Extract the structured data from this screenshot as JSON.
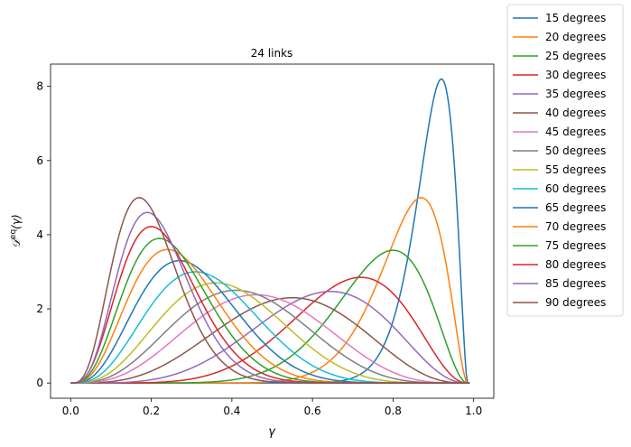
{
  "chart_data": {
    "type": "line",
    "title": "24 links",
    "xlabel": "γ",
    "ylabel_main": "𝒟",
    "ylabel_sup": "eq",
    "ylabel_arg": "(γ)",
    "xlim": [
      -0.05,
      1.05
    ],
    "ylim": [
      -0.41,
      8.6
    ],
    "x_ticks": [
      0.0,
      0.2,
      0.4,
      0.6,
      0.8,
      1.0
    ],
    "x_tick_labels": [
      "0.0",
      "0.2",
      "0.4",
      "0.6",
      "0.8",
      "1.0"
    ],
    "y_ticks": [
      0,
      2,
      4,
      6,
      8
    ],
    "y_tick_labels": [
      "0",
      "2",
      "4",
      "6",
      "8"
    ],
    "grid": false,
    "legend_position": "outside-right",
    "colors": [
      "#1f77b4",
      "#ff7f0e",
      "#2ca02c",
      "#d62728",
      "#9467bd",
      "#8c564b",
      "#e377c2",
      "#7f7f7f",
      "#bcbd22",
      "#17becf"
    ],
    "series": [
      {
        "name": "15 degrees",
        "peak_x": 0.92,
        "peak_y": 8.2,
        "x_end": 0.985
      },
      {
        "name": "20 degrees",
        "peak_x": 0.87,
        "peak_y": 5.0,
        "x_end": 0.985
      },
      {
        "name": "25 degrees",
        "peak_x": 0.8,
        "peak_y": 3.58,
        "x_end": 0.985
      },
      {
        "name": "30 degrees",
        "peak_x": 0.72,
        "peak_y": 2.85,
        "x_end": 0.985
      },
      {
        "name": "35 degrees",
        "peak_x": 0.645,
        "peak_y": 2.47,
        "x_end": 0.985
      },
      {
        "name": "40 degrees",
        "peak_x": 0.55,
        "peak_y": 2.3,
        "x_end": 0.985
      },
      {
        "name": "45 degrees",
        "peak_x": 0.46,
        "peak_y": 2.38,
        "x_end": 0.985
      },
      {
        "name": "50 degrees",
        "peak_x": 0.41,
        "peak_y": 2.5,
        "x_end": 0.985
      },
      {
        "name": "55 degrees",
        "peak_x": 0.36,
        "peak_y": 2.7,
        "x_end": 0.985
      },
      {
        "name": "60 degrees",
        "peak_x": 0.31,
        "peak_y": 3.0,
        "x_end": 0.985
      },
      {
        "name": "65 degrees",
        "peak_x": 0.27,
        "peak_y": 3.3,
        "x_end": 0.985
      },
      {
        "name": "70 degrees",
        "peak_x": 0.24,
        "peak_y": 3.6,
        "x_end": 0.985
      },
      {
        "name": "75 degrees",
        "peak_x": 0.22,
        "peak_y": 3.9,
        "x_end": 0.985
      },
      {
        "name": "80 degrees",
        "peak_x": 0.2,
        "peak_y": 4.22,
        "x_end": 0.985
      },
      {
        "name": "85 degrees",
        "peak_x": 0.19,
        "peak_y": 4.6,
        "x_end": 0.985
      },
      {
        "name": "90 degrees",
        "peak_x": 0.17,
        "peak_y": 5.0,
        "x_end": 0.985
      }
    ]
  }
}
